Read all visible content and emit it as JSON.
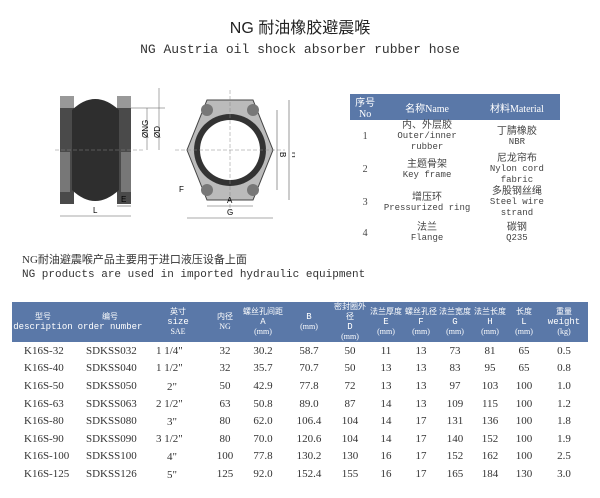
{
  "title": "NG 耐油橡胶避震喉",
  "subtitle": "NG Austria oil shock absorber rubber hose",
  "drawing": {
    "labels": {
      "ng": "ØNG",
      "d": "ØD",
      "e": "E",
      "l": "L",
      "f": "F",
      "a": "A",
      "g": "G",
      "b": "B",
      "h": "H"
    }
  },
  "materials": {
    "headers": [
      "序号No",
      "名称Name",
      "材料Material"
    ],
    "rows": [
      {
        "no": "1",
        "name_cn": "内、外层胶",
        "name_en": "Outer/inner rubber",
        "mat_cn": "丁腈橡胶",
        "mat_en": "NBR"
      },
      {
        "no": "2",
        "name_cn": "主题骨架",
        "name_en": "Key frame",
        "mat_cn": "尼龙帘布",
        "mat_en": "Nylon cord fabric"
      },
      {
        "no": "3",
        "name_cn": "增压环",
        "name_en": "Pressurized ring",
        "mat_cn": "多股钢丝绳",
        "mat_en": "Steel wire strand"
      },
      {
        "no": "4",
        "name_cn": "法兰",
        "name_en": "Flange",
        "mat_cn": "碳钢",
        "mat_en": "Q235"
      }
    ]
  },
  "notes": {
    "cn": "NG耐油避震喉产品主要用于进口液压设备上面",
    "en": "NG products are used in imported hydraulic equipment"
  },
  "spec": {
    "headers": [
      {
        "cn": "型号",
        "en": "description",
        "unit": ""
      },
      {
        "cn": "编号",
        "en": "order number",
        "unit": ""
      },
      {
        "cn": "英寸",
        "en": "size",
        "unit": "SAE"
      },
      {
        "cn": "内径",
        "en": "",
        "unit": "NG"
      },
      {
        "cn": "螺丝孔间距",
        "en": "A",
        "unit": "(mm)"
      },
      {
        "cn": "",
        "en": "B",
        "unit": "(mm)"
      },
      {
        "cn": "密封圈外径",
        "en": "D",
        "unit": "(mm)"
      },
      {
        "cn": "法兰厚度",
        "en": "E",
        "unit": "(mm)"
      },
      {
        "cn": "螺丝孔径",
        "en": "F",
        "unit": "(mm)"
      },
      {
        "cn": "法兰宽度",
        "en": "G",
        "unit": "(mm)"
      },
      {
        "cn": "法兰长度",
        "en": "H",
        "unit": "(mm)"
      },
      {
        "cn": "长度",
        "en": "L",
        "unit": "(mm)"
      },
      {
        "cn": "重量",
        "en": "weight",
        "unit": "(kg)"
      }
    ],
    "rows": [
      [
        "K16S-32",
        "SDKSS032",
        "1 1/4\"",
        "32",
        "30.2",
        "58.7",
        "50",
        "11",
        "13",
        "73",
        "81",
        "65",
        "0.5"
      ],
      [
        "K16S-40",
        "SDKSS040",
        "1 1/2\"",
        "32",
        "35.7",
        "70.7",
        "50",
        "13",
        "13",
        "83",
        "95",
        "65",
        "0.8"
      ],
      [
        "K16S-50",
        "SDKSS050",
        "　2\"",
        "50",
        "42.9",
        "77.8",
        "72",
        "13",
        "13",
        "97",
        "103",
        "100",
        "1.0"
      ],
      [
        "K16S-63",
        "SDKSS063",
        "2 1/2\"",
        "63",
        "50.8",
        "89.0",
        "87",
        "14",
        "13",
        "109",
        "115",
        "100",
        "1.2"
      ],
      [
        "K16S-80",
        "SDKSS080",
        "　3\"",
        "80",
        "62.0",
        "106.4",
        "104",
        "14",
        "17",
        "131",
        "136",
        "100",
        "1.8"
      ],
      [
        "K16S-90",
        "SDKSS090",
        "3 1/2\"",
        "80",
        "70.0",
        "120.6",
        "104",
        "14",
        "17",
        "140",
        "152",
        "100",
        "1.9"
      ],
      [
        "K16S-100",
        "SDKSS100",
        "　4\"",
        "100",
        "77.8",
        "130.2",
        "130",
        "16",
        "17",
        "152",
        "162",
        "100",
        "2.5"
      ],
      [
        "K16S-125",
        "SDKSS126",
        "　5\"",
        "125",
        "92.0",
        "152.4",
        "155",
        "16",
        "17",
        "165",
        "184",
        "130",
        "3.0"
      ]
    ]
  },
  "colors": {
    "header_bg": "#5a78a8",
    "header_text": "#ffffff"
  }
}
